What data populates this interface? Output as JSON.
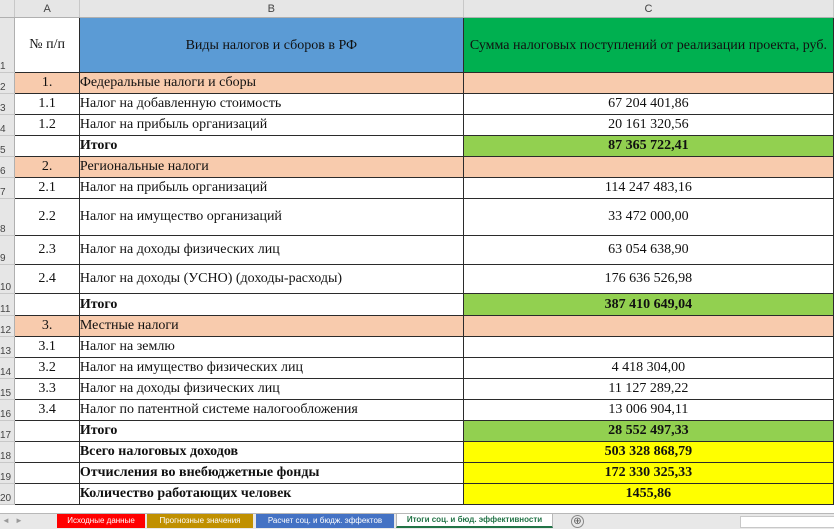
{
  "columns": [
    "A",
    "B",
    "C"
  ],
  "header": {
    "col_a": "№ п/п",
    "col_b": "Виды налогов и сборов в РФ",
    "col_c": "Сумма налоговых поступлений от реализации проекта, руб."
  },
  "row_numbers": [
    "1",
    "2",
    "3",
    "4",
    "5",
    "6",
    "7",
    "8",
    "9",
    "10",
    "11",
    "12",
    "13",
    "14",
    "15",
    "16",
    "17",
    "18",
    "19",
    "20"
  ],
  "rows": [
    {
      "a": "1.",
      "b": "Федеральные налоги и сборы",
      "c": ""
    },
    {
      "a": "1.1",
      "b": "Налог на добавленную стоимость",
      "c": "67 204 401,86"
    },
    {
      "a": "1.2",
      "b": "Налог на прибыль организаций",
      "c": "20 161 320,56"
    },
    {
      "a": "",
      "b": "Итого",
      "c": "87 365 722,41"
    },
    {
      "a": "2.",
      "b": "Региональные налоги",
      "c": ""
    },
    {
      "a": "2.1",
      "b": "Налог на прибыль организаций",
      "c": "114 247 483,16"
    },
    {
      "a": "2.2",
      "b": "Налог на имущество организаций",
      "c": "33 472 000,00"
    },
    {
      "a": "2.3",
      "b": "Налог на доходы физических лиц",
      "c": "63 054 638,90"
    },
    {
      "a": "2.4",
      "b": "Налог на доходы (УСНО) (доходы-расходы)",
      "c": "176 636 526,98"
    },
    {
      "a": "",
      "b": "Итого",
      "c": "387 410 649,04"
    },
    {
      "a": "3.",
      "b": "Местные налоги",
      "c": ""
    },
    {
      "a": "3.1",
      "b": "Налог на землю",
      "c": ""
    },
    {
      "a": "3.2",
      "b": "Налог на имущество физических лиц",
      "c": "4 418 304,00"
    },
    {
      "a": "3.3",
      "b": "Налог на доходы физических лиц",
      "c": "11 127 289,22"
    },
    {
      "a": "3.4",
      "b": "Налог по патентной системе налогообложения",
      "c": "13 006 904,11"
    },
    {
      "a": "",
      "b": "Итого",
      "c": "28 552 497,33"
    },
    {
      "a": "",
      "b": "Всего налоговых доходов",
      "c": "503 328 868,79"
    },
    {
      "a": "",
      "b": "Отчисления во внебюджетные фонды",
      "c": "172 330 325,33"
    },
    {
      "a": "",
      "b": "Количество работающих человек",
      "c": "1455,86"
    }
  ],
  "tabs": [
    {
      "label": "Исходные данные",
      "color": "#ff0000"
    },
    {
      "label": "Прогнозные значения",
      "color": "#c09000"
    },
    {
      "label": "Расчет соц. и бюдж. эффектов",
      "color": "#4472c4"
    },
    {
      "label": "Итоги соц. и бюд. эффективности",
      "color": "#ffffff"
    }
  ],
  "add_sheet_label": "⊕",
  "nav_prev": "◄",
  "nav_next": "►"
}
